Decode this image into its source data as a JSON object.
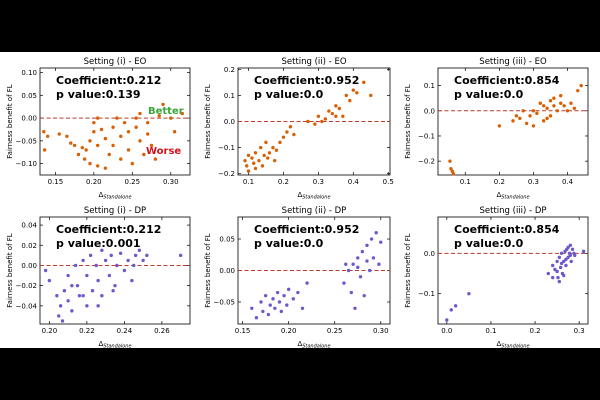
{
  "colors": {
    "eo_points": "#d95f02",
    "dp_points": "#6a5acd",
    "zero_line": "#c0392b",
    "better": "#3aa53a",
    "worse": "#d0121b"
  },
  "chart_data": [
    {
      "type": "scatter",
      "title": "Setting (i) - EO",
      "ylabel": "Fairness benefit of FL",
      "xlabel": "Δ",
      "xlabel_sub": "Standalone",
      "xlim": [
        0.13,
        0.325
      ],
      "ylim": [
        -0.125,
        0.11
      ],
      "xticks": [
        0.15,
        0.2,
        0.25,
        0.3
      ],
      "xtick_labels": [
        "0.15",
        "0.20",
        "0.25",
        "0.30"
      ],
      "yticks": [
        -0.1,
        -0.05,
        0.0,
        0.05,
        0.1
      ],
      "ytick_labels": [
        "−0.10",
        "−0.05",
        "0.00",
        "0.05",
        "0.10"
      ],
      "annotation": [
        "Coefficient:0.212",
        "p value:0.139"
      ],
      "better_label": "Better",
      "worse_label": "Worse",
      "point_color": "eo_points",
      "points": [
        [
          0.135,
          -0.03
        ],
        [
          0.14,
          -0.04
        ],
        [
          0.136,
          -0.07
        ],
        [
          0.155,
          -0.035
        ],
        [
          0.165,
          -0.04
        ],
        [
          0.17,
          -0.055
        ],
        [
          0.18,
          -0.08
        ],
        [
          0.185,
          -0.065
        ],
        [
          0.188,
          -0.09
        ],
        [
          0.19,
          -0.07
        ],
        [
          0.195,
          -0.1
        ],
        [
          0.2,
          -0.01
        ],
        [
          0.2,
          -0.03
        ],
        [
          0.205,
          0.0
        ],
        [
          0.21,
          -0.025
        ],
        [
          0.215,
          -0.045
        ],
        [
          0.22,
          -0.08
        ],
        [
          0.215,
          -0.11
        ],
        [
          0.205,
          -0.105
        ],
        [
          0.225,
          -0.02
        ],
        [
          0.23,
          0.0
        ],
        [
          0.235,
          -0.04
        ],
        [
          0.24,
          -0.01
        ],
        [
          0.245,
          -0.03
        ],
        [
          0.245,
          -0.07
        ],
        [
          0.25,
          -0.1
        ],
        [
          0.255,
          0.0
        ],
        [
          0.255,
          -0.02
        ],
        [
          0.26,
          -0.05
        ],
        [
          0.265,
          -0.08
        ],
        [
          0.27,
          -0.01
        ],
        [
          0.275,
          -0.06
        ],
        [
          0.28,
          -0.09
        ],
        [
          0.285,
          0.005
        ],
        [
          0.29,
          0.03
        ],
        [
          0.3,
          0.0
        ],
        [
          0.305,
          -0.03
        ],
        [
          0.315,
          0.01
        ],
        [
          0.205,
          -0.06
        ],
        [
          0.225,
          -0.06
        ],
        [
          0.235,
          -0.09
        ],
        [
          0.195,
          -0.05
        ],
        [
          0.175,
          -0.06
        ],
        [
          0.26,
          0.01
        ],
        [
          0.27,
          -0.035
        ]
      ]
    },
    {
      "type": "scatter",
      "title": "Setting (ii) - EO",
      "ylabel": "Fairness benefit of FL",
      "xlabel": "Δ",
      "xlabel_sub": "Standalone",
      "xlim": [
        0.07,
        0.505
      ],
      "ylim": [
        -0.205,
        0.205
      ],
      "xticks": [
        0.1,
        0.2,
        0.3,
        0.4,
        0.5
      ],
      "xtick_labels": [
        "0.1",
        "0.2",
        "0.3",
        "0.4",
        "0.5"
      ],
      "yticks": [
        -0.2,
        -0.1,
        0.0,
        0.1,
        0.2
      ],
      "ytick_labels": [
        "−0.2",
        "−0.1",
        "0.0",
        "0.1",
        "0.2"
      ],
      "annotation": [
        "Coefficient:0.952",
        "p value:0.0"
      ],
      "point_color": "eo_points",
      "points": [
        [
          0.09,
          -0.15
        ],
        [
          0.095,
          -0.17
        ],
        [
          0.1,
          -0.13
        ],
        [
          0.1,
          -0.19
        ],
        [
          0.11,
          -0.14
        ],
        [
          0.115,
          -0.16
        ],
        [
          0.12,
          -0.12
        ],
        [
          0.12,
          -0.18
        ],
        [
          0.13,
          -0.15
        ],
        [
          0.135,
          -0.1
        ],
        [
          0.14,
          -0.17
        ],
        [
          0.145,
          -0.13
        ],
        [
          0.15,
          -0.08
        ],
        [
          0.155,
          -0.14
        ],
        [
          0.16,
          -0.12
        ],
        [
          0.17,
          -0.1
        ],
        [
          0.175,
          -0.15
        ],
        [
          0.18,
          -0.11
        ],
        [
          0.19,
          -0.08
        ],
        [
          0.2,
          -0.06
        ],
        [
          0.21,
          -0.04
        ],
        [
          0.22,
          -0.02
        ],
        [
          0.23,
          -0.05
        ],
        [
          0.27,
          0.0
        ],
        [
          0.29,
          -0.01
        ],
        [
          0.3,
          0.02
        ],
        [
          0.31,
          0.0
        ],
        [
          0.33,
          0.04
        ],
        [
          0.34,
          0.03
        ],
        [
          0.35,
          0.06
        ],
        [
          0.36,
          0.05
        ],
        [
          0.37,
          0.02
        ],
        [
          0.38,
          0.1
        ],
        [
          0.39,
          0.08
        ],
        [
          0.4,
          0.12
        ],
        [
          0.41,
          0.11
        ],
        [
          0.43,
          0.15
        ],
        [
          0.45,
          0.1
        ],
        [
          0.32,
          0.01
        ],
        [
          0.35,
          0.02
        ]
      ]
    },
    {
      "type": "scatter",
      "title": "Setting (iii) - EO",
      "ylabel": "Fairness benefit of FL",
      "xlabel": "Δ",
      "xlabel_sub": "Standalone",
      "xlim": [
        0.02,
        0.46
      ],
      "ylim": [
        -0.255,
        0.17
      ],
      "xticks": [
        0.1,
        0.2,
        0.3,
        0.4
      ],
      "xtick_labels": [
        "0.1",
        "0.2",
        "0.3",
        "0.4"
      ],
      "yticks": [
        -0.2,
        -0.1,
        0.0,
        0.1
      ],
      "ytick_labels": [
        "−0.2",
        "−0.1",
        "0.0",
        "0.1"
      ],
      "annotation": [
        "Coefficient:0.854",
        "p value:0.0"
      ],
      "point_color": "eo_points",
      "points": [
        [
          0.055,
          -0.2
        ],
        [
          0.058,
          -0.23
        ],
        [
          0.062,
          -0.24
        ],
        [
          0.065,
          -0.25
        ],
        [
          0.2,
          -0.06
        ],
        [
          0.24,
          -0.04
        ],
        [
          0.26,
          -0.03
        ],
        [
          0.27,
          0.0
        ],
        [
          0.28,
          -0.05
        ],
        [
          0.29,
          -0.02
        ],
        [
          0.3,
          0.0
        ],
        [
          0.31,
          -0.01
        ],
        [
          0.32,
          0.03
        ],
        [
          0.33,
          -0.04
        ],
        [
          0.33,
          0.02
        ],
        [
          0.34,
          0.01
        ],
        [
          0.35,
          0.04
        ],
        [
          0.35,
          -0.02
        ],
        [
          0.36,
          0.05
        ],
        [
          0.37,
          0.0
        ],
        [
          0.38,
          0.06
        ],
        [
          0.39,
          0.02
        ],
        [
          0.4,
          0.0
        ],
        [
          0.41,
          0.03
        ],
        [
          0.42,
          0.01
        ],
        [
          0.43,
          0.08
        ],
        [
          0.44,
          0.1
        ],
        [
          0.3,
          -0.06
        ],
        [
          0.34,
          -0.03
        ],
        [
          0.36,
          0.02
        ],
        [
          0.38,
          0.03
        ],
        [
          0.25,
          -0.02
        ]
      ]
    },
    {
      "type": "scatter",
      "title": "Setting (i) - DP",
      "ylabel": "Fairness benefit of FL",
      "xlabel": "Δ",
      "xlabel_sub": "Standalone",
      "xlim": [
        0.195,
        0.275
      ],
      "ylim": [
        -0.058,
        0.048
      ],
      "xticks": [
        0.2,
        0.22,
        0.24,
        0.26
      ],
      "xtick_labels": [
        "0.20",
        "0.22",
        "0.24",
        "0.26"
      ],
      "yticks": [
        -0.04,
        -0.02,
        0.0,
        0.02,
        0.04
      ],
      "ytick_labels": [
        "−0.04",
        "−0.02",
        "0.00",
        "0.02",
        "0.04"
      ],
      "annotation": [
        "Coefficient:0.212",
        "p value:0.001"
      ],
      "point_color": "dp_points",
      "points": [
        [
          0.198,
          -0.005
        ],
        [
          0.2,
          -0.015
        ],
        [
          0.204,
          -0.03
        ],
        [
          0.205,
          -0.05
        ],
        [
          0.206,
          -0.04
        ],
        [
          0.208,
          -0.025
        ],
        [
          0.21,
          -0.01
        ],
        [
          0.21,
          -0.035
        ],
        [
          0.212,
          -0.045
        ],
        [
          0.214,
          0.0
        ],
        [
          0.215,
          -0.02
        ],
        [
          0.216,
          -0.03
        ],
        [
          0.218,
          0.005
        ],
        [
          0.22,
          -0.01
        ],
        [
          0.22,
          -0.04
        ],
        [
          0.222,
          0.01
        ],
        [
          0.223,
          -0.025
        ],
        [
          0.225,
          0.0
        ],
        [
          0.226,
          -0.015
        ],
        [
          0.228,
          0.015
        ],
        [
          0.228,
          -0.03
        ],
        [
          0.23,
          0.005
        ],
        [
          0.232,
          -0.01
        ],
        [
          0.233,
          0.01
        ],
        [
          0.235,
          -0.02
        ],
        [
          0.236,
          0.0
        ],
        [
          0.238,
          0.012
        ],
        [
          0.24,
          -0.005
        ],
        [
          0.242,
          0.005
        ],
        [
          0.244,
          -0.015
        ],
        [
          0.245,
          0.0
        ],
        [
          0.246,
          0.01
        ],
        [
          0.248,
          0.015
        ],
        [
          0.25,
          0.005
        ],
        [
          0.252,
          0.01
        ],
        [
          0.27,
          0.01
        ],
        [
          0.218,
          -0.03
        ],
        [
          0.226,
          -0.04
        ],
        [
          0.234,
          -0.025
        ],
        [
          0.212,
          -0.02
        ],
        [
          0.207,
          -0.055
        ]
      ]
    },
    {
      "type": "scatter",
      "title": "Setting (ii) - DP",
      "ylabel": "Fairness benefit of FL",
      "xlabel": "Δ",
      "xlabel_sub": "Standalone",
      "xlim": [
        0.145,
        0.31
      ],
      "ylim": [
        -0.085,
        0.085
      ],
      "xticks": [
        0.15,
        0.2,
        0.25,
        0.3
      ],
      "xtick_labels": [
        "0.15",
        "0.20",
        "0.25",
        "0.30"
      ],
      "yticks": [
        -0.05,
        0.0,
        0.05
      ],
      "ytick_labels": [
        "−0.05",
        "0.00",
        "0.05"
      ],
      "annotation": [
        "Coefficient:0.952",
        "p value:0.0"
      ],
      "point_color": "dp_points",
      "points": [
        [
          0.16,
          -0.06
        ],
        [
          0.165,
          -0.075
        ],
        [
          0.17,
          -0.05
        ],
        [
          0.172,
          -0.065
        ],
        [
          0.175,
          -0.04
        ],
        [
          0.178,
          -0.07
        ],
        [
          0.18,
          -0.055
        ],
        [
          0.183,
          -0.045
        ],
        [
          0.185,
          -0.06
        ],
        [
          0.188,
          -0.035
        ],
        [
          0.19,
          -0.05
        ],
        [
          0.192,
          -0.065
        ],
        [
          0.195,
          -0.04
        ],
        [
          0.198,
          -0.055
        ],
        [
          0.2,
          -0.03
        ],
        [
          0.205,
          -0.045
        ],
        [
          0.21,
          -0.035
        ],
        [
          0.215,
          -0.06
        ],
        [
          0.22,
          -0.02
        ],
        [
          0.26,
          -0.02
        ],
        [
          0.265,
          0.0
        ],
        [
          0.268,
          -0.035
        ],
        [
          0.27,
          0.01
        ],
        [
          0.272,
          -0.06
        ],
        [
          0.275,
          0.02
        ],
        [
          0.278,
          -0.01
        ],
        [
          0.28,
          0.03
        ],
        [
          0.282,
          -0.04
        ],
        [
          0.285,
          0.04
        ],
        [
          0.288,
          0.0
        ],
        [
          0.29,
          0.05
        ],
        [
          0.292,
          0.02
        ],
        [
          0.295,
          0.06
        ],
        [
          0.298,
          0.01
        ],
        [
          0.3,
          0.045
        ],
        [
          0.285,
          0.015
        ],
        [
          0.275,
          0.005
        ],
        [
          0.262,
          0.01
        ]
      ]
    },
    {
      "type": "scatter",
      "title": "Setting (iii) - DP",
      "ylabel": "Fairness benefit of FL",
      "xlabel": "Δ",
      "xlabel_sub": "Standalone",
      "xlim": [
        -0.02,
        0.32
      ],
      "ylim": [
        -0.175,
        0.09
      ],
      "xticks": [
        0.0,
        0.1,
        0.2,
        0.3
      ],
      "xtick_labels": [
        "0.0",
        "0.1",
        "0.2",
        "0.3"
      ],
      "yticks": [
        -0.1,
        0.0
      ],
      "ytick_labels": [
        "−0.1",
        "0.0"
      ],
      "annotation": [
        "Coefficient:0.854",
        "p value:0.0"
      ],
      "point_color": "dp_points",
      "points": [
        [
          0.0,
          -0.165
        ],
        [
          0.01,
          -0.14
        ],
        [
          0.02,
          -0.13
        ],
        [
          0.05,
          -0.1
        ],
        [
          0.23,
          -0.05
        ],
        [
          0.24,
          -0.03
        ],
        [
          0.245,
          -0.04
        ],
        [
          0.25,
          -0.02
        ],
        [
          0.252,
          -0.06
        ],
        [
          0.255,
          -0.01
        ],
        [
          0.258,
          -0.035
        ],
        [
          0.26,
          0.0
        ],
        [
          0.262,
          -0.05
        ],
        [
          0.265,
          -0.02
        ],
        [
          0.268,
          0.005
        ],
        [
          0.27,
          -0.03
        ],
        [
          0.272,
          0.01
        ],
        [
          0.275,
          -0.01
        ],
        [
          0.278,
          0.0
        ],
        [
          0.28,
          0.02
        ],
        [
          0.282,
          -0.02
        ],
        [
          0.285,
          0.01
        ],
        [
          0.288,
          0.0
        ],
        [
          0.29,
          -0.005
        ],
        [
          0.31,
          0.005
        ],
        [
          0.25,
          -0.045
        ],
        [
          0.26,
          -0.025
        ],
        [
          0.27,
          -0.015
        ],
        [
          0.28,
          -0.005
        ],
        [
          0.265,
          -0.055
        ],
        [
          0.255,
          -0.07
        ],
        [
          0.275,
          0.015
        ],
        [
          0.24,
          -0.06
        ]
      ]
    }
  ]
}
